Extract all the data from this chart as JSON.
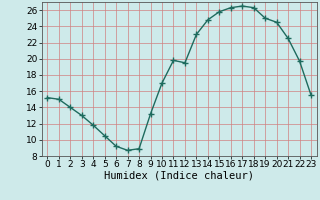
{
  "x": [
    0,
    1,
    2,
    3,
    4,
    5,
    6,
    7,
    8,
    9,
    10,
    11,
    12,
    13,
    14,
    15,
    16,
    17,
    18,
    19,
    20,
    21,
    22,
    23
  ],
  "y": [
    15.2,
    15.0,
    14.0,
    13.0,
    11.8,
    10.5,
    9.2,
    8.7,
    8.9,
    13.2,
    17.0,
    19.8,
    19.5,
    23.0,
    24.8,
    25.8,
    26.3,
    26.5,
    26.3,
    25.0,
    24.5,
    22.5,
    19.7,
    15.5
  ],
  "line_color": "#1e6b5e",
  "marker": "+",
  "marker_size": 4,
  "marker_lw": 1.0,
  "bg_color": "#ceeaea",
  "grid_color_major": "#d08080",
  "grid_color_minor": "#e8b0b0",
  "xlabel": "Humidex (Indice chaleur)",
  "xlim": [
    -0.5,
    23.5
  ],
  "ylim": [
    8,
    27
  ],
  "yticks": [
    8,
    10,
    12,
    14,
    16,
    18,
    20,
    22,
    24,
    26
  ],
  "xticks": [
    0,
    1,
    2,
    3,
    4,
    5,
    6,
    7,
    8,
    9,
    10,
    11,
    12,
    13,
    14,
    15,
    16,
    17,
    18,
    19,
    20,
    21,
    22,
    23
  ],
  "xlabel_fontsize": 7.5,
  "tick_fontsize": 6.5,
  "linewidth": 1.0
}
